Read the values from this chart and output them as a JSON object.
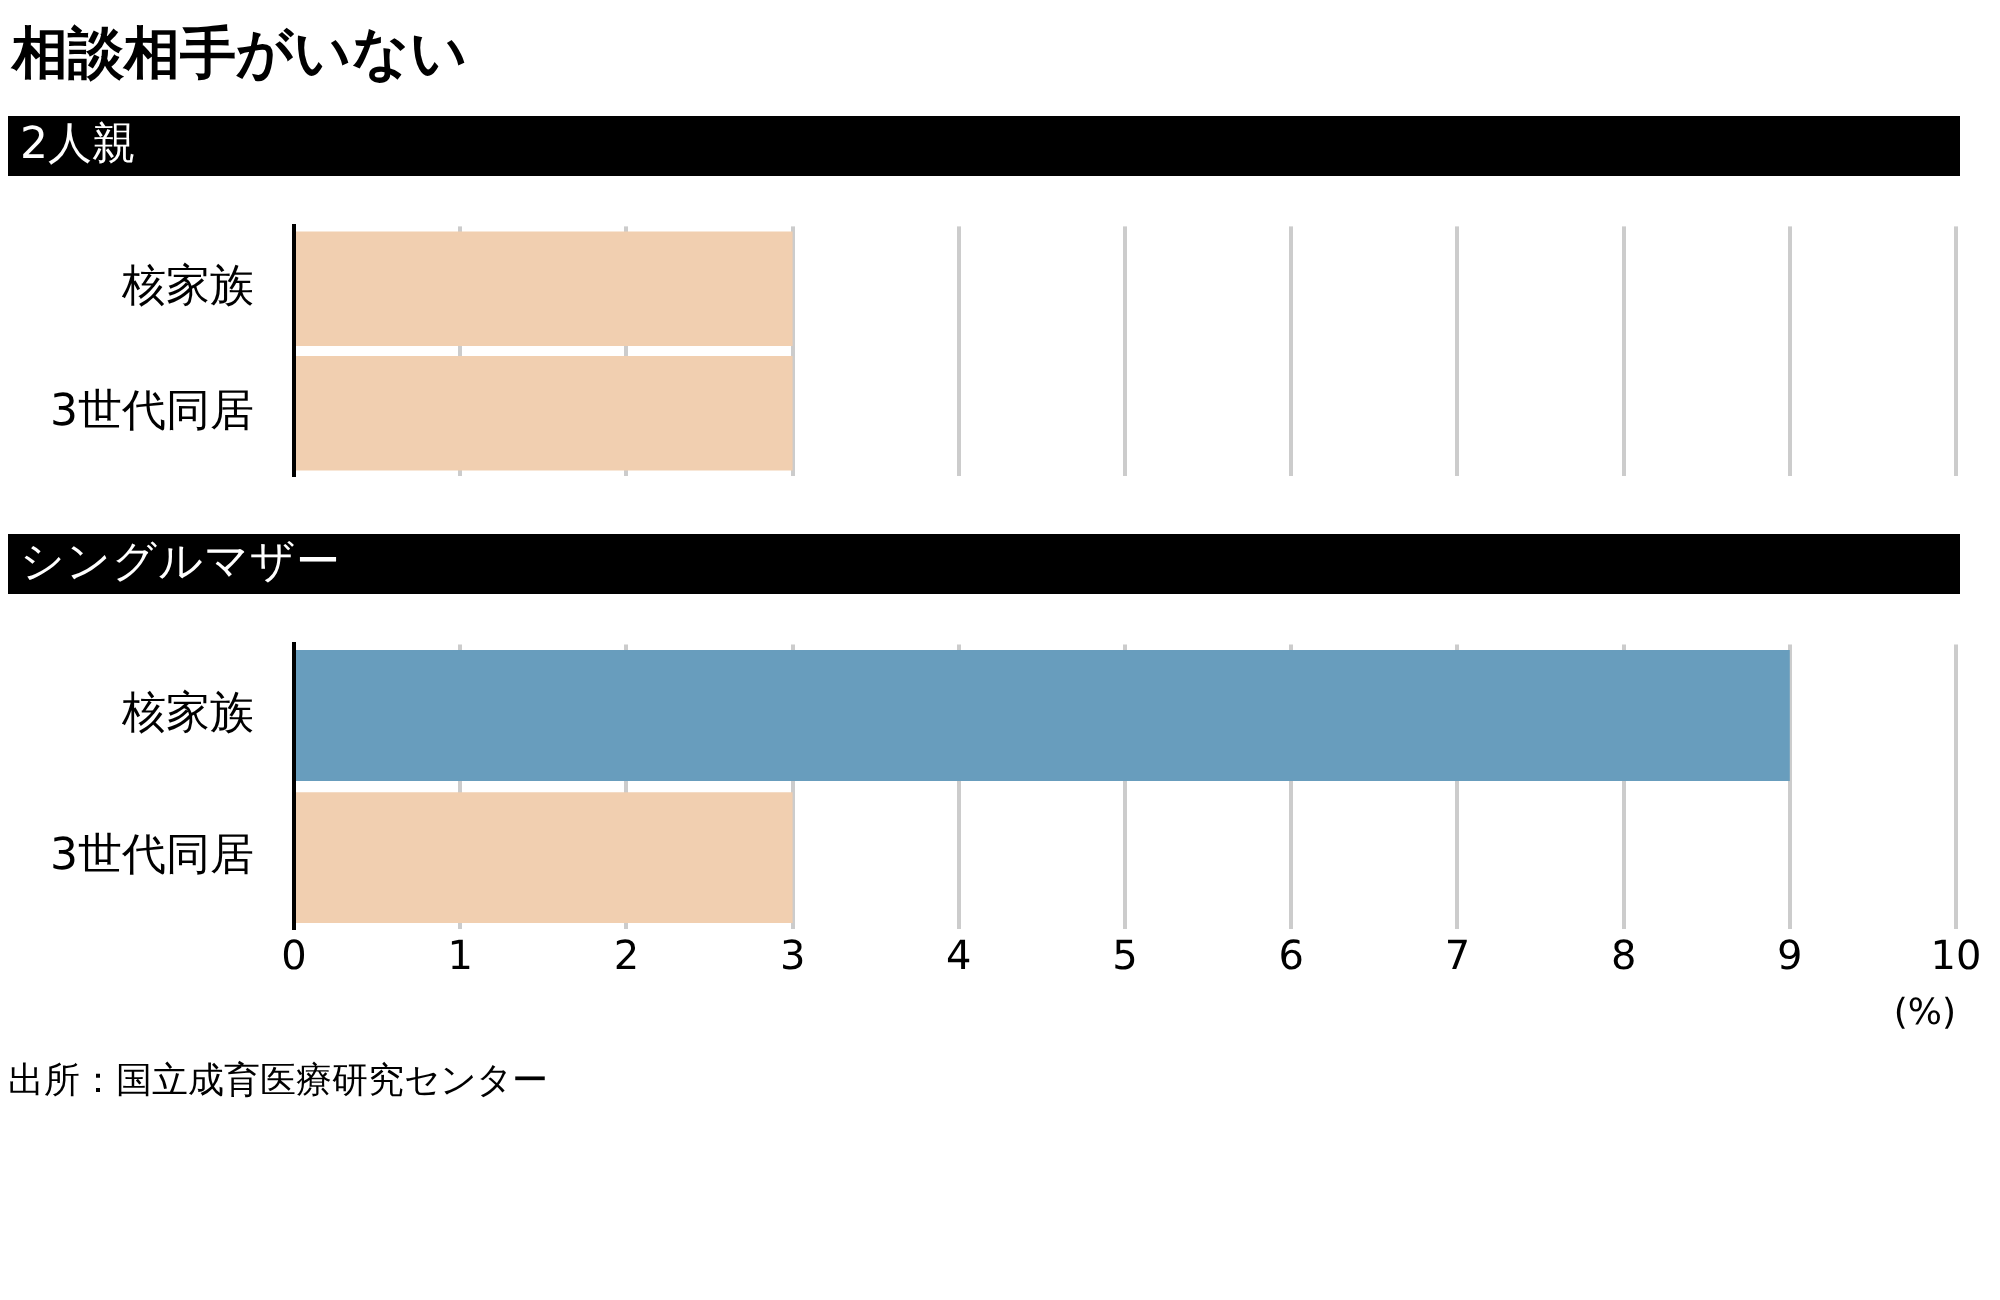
{
  "chart_data": [
    {
      "type": "bar",
      "orientation": "horizontal",
      "title": "相談相手がいない",
      "subtitle": "2人親",
      "categories": [
        "核家族",
        "3世代同居"
      ],
      "values": [
        3,
        3
      ],
      "colors": [
        "#f1cfb0",
        "#f1cfb0"
      ],
      "xlim": [
        0,
        10
      ],
      "xticks": [
        0,
        1,
        2,
        3,
        4,
        5,
        6,
        7,
        8,
        9,
        10
      ],
      "grid": "x",
      "tick_labels": "y"
    },
    {
      "type": "bar",
      "orientation": "horizontal",
      "subtitle": "シングルマザー",
      "categories": [
        "核家族",
        "3世代同居"
      ],
      "values": [
        9,
        3
      ],
      "colors": [
        "#689dbd",
        "#f1cfb0"
      ],
      "xlim": [
        0,
        10
      ],
      "xticks": [
        0,
        1,
        2,
        3,
        4,
        5,
        6,
        7,
        8,
        9,
        10
      ],
      "grid": "x",
      "xlabel": "(%)",
      "annotations": [
        "出所：国立成育医療研究センター"
      ]
    }
  ]
}
